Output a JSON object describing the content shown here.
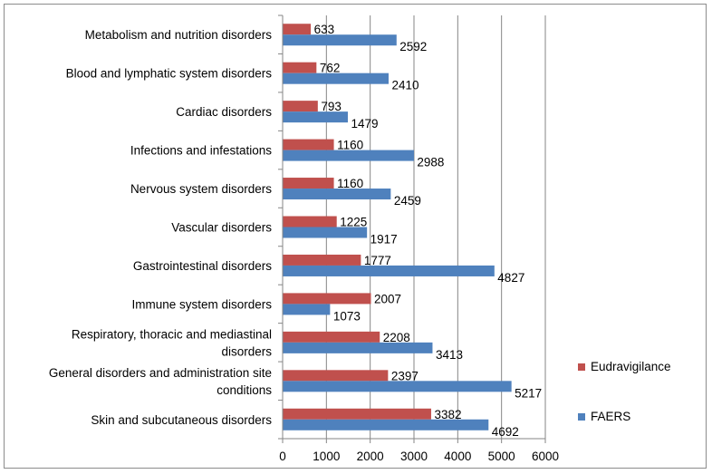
{
  "chart_data": {
    "type": "bar",
    "orientation": "horizontal",
    "categories": [
      "Metabolism and nutrition disorders",
      "Blood and lymphatic system disorders",
      "Cardiac disorders",
      "Infections and infestations",
      "Nervous system disorders",
      "Vascular disorders",
      "Gastrointestinal disorders",
      "Immune system disorders",
      "Respiratory, thoracic and mediastinal disorders",
      "General disorders and administration site conditions",
      "Skin and subcutaneous disorders"
    ],
    "category_lines": [
      [
        "Metabolism and nutrition disorders"
      ],
      [
        "Blood and lymphatic system disorders"
      ],
      [
        "Cardiac disorders"
      ],
      [
        "Infections and infestations"
      ],
      [
        "Nervous system disorders"
      ],
      [
        "Vascular disorders"
      ],
      [
        "Gastrointestinal disorders"
      ],
      [
        "Immune system disorders"
      ],
      [
        "Respiratory, thoracic and mediastinal",
        "disorders"
      ],
      [
        "General disorders and administration site",
        "conditions"
      ],
      [
        "Skin and subcutaneous disorders"
      ]
    ],
    "series": [
      {
        "name": "Eudravigilance",
        "color": "#c0504d",
        "values": [
          633,
          762,
          793,
          1160,
          1160,
          1225,
          1777,
          2007,
          2208,
          2397,
          3382
        ]
      },
      {
        "name": "FAERS",
        "color": "#4f81bd",
        "values": [
          2592,
          2410,
          1479,
          2988,
          2459,
          1917,
          4827,
          1073,
          3413,
          5217,
          4692
        ]
      }
    ],
    "xlim": [
      0,
      6000
    ],
    "xticks": [
      0,
      1000,
      2000,
      3000,
      4000,
      5000,
      6000
    ],
    "gridlines": "vertical",
    "legend_position": "right",
    "data_labels": true,
    "title": "",
    "xlabel": "",
    "ylabel": ""
  }
}
